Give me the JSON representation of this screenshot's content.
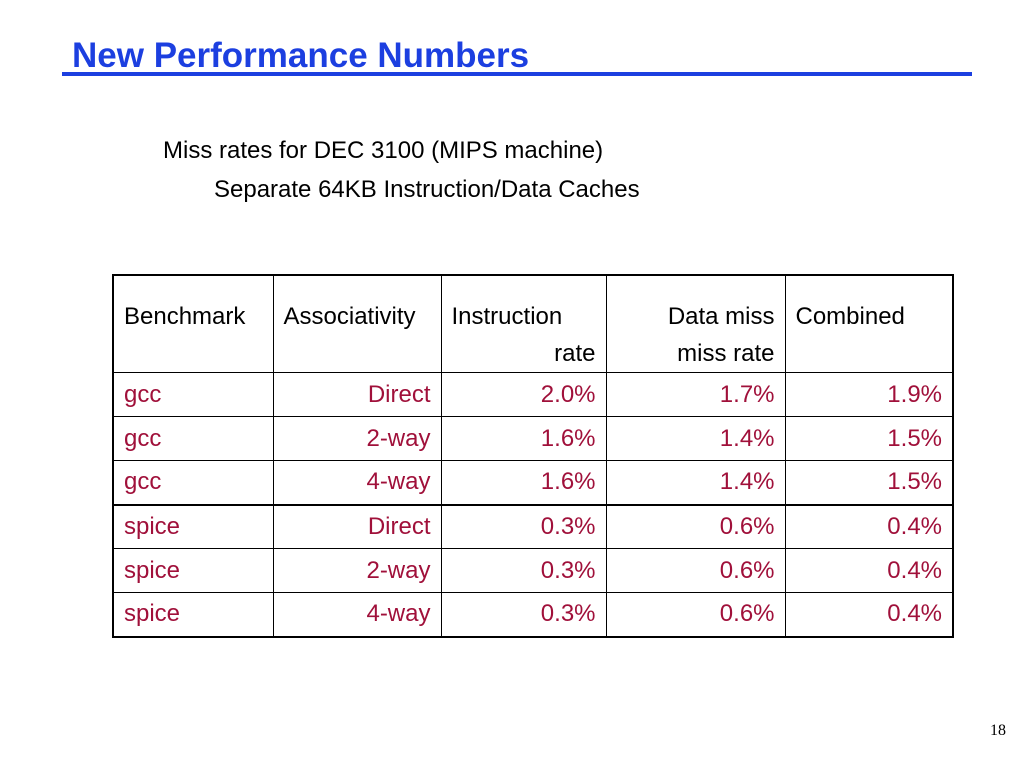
{
  "slide": {
    "title": "New Performance Numbers",
    "subtitle_line1": "Miss rates for DEC 3100 (MIPS machine)",
    "subtitle_line2": "Separate 64KB Instruction/Data Caches",
    "page_number": "18"
  },
  "table": {
    "headers": {
      "benchmark": "Benchmark",
      "associativity": "Associativity",
      "instruction_line1": "Instruction",
      "instruction_line2": "rate",
      "data_line1": "Data miss",
      "data_line2": "miss rate",
      "combined": "Combined"
    },
    "rows": [
      {
        "benchmark": "gcc",
        "associativity": "Direct",
        "instruction": "2.0%",
        "data": "1.7%",
        "combined": "1.9%"
      },
      {
        "benchmark": "gcc",
        "associativity": "2-way",
        "instruction": "1.6%",
        "data": "1.4%",
        "combined": "1.5%"
      },
      {
        "benchmark": "gcc",
        "associativity": "4-way",
        "instruction": "1.6%",
        "data": "1.4%",
        "combined": "1.5%"
      },
      {
        "benchmark": "spice",
        "associativity": "Direct",
        "instruction": "0.3%",
        "data": "0.6%",
        "combined": "0.4%"
      },
      {
        "benchmark": "spice",
        "associativity": "2-way",
        "instruction": "0.3%",
        "data": "0.6%",
        "combined": "0.4%"
      },
      {
        "benchmark": "spice",
        "associativity": "4-way",
        "instruction": "0.3%",
        "data": "0.6%",
        "combined": "0.4%"
      }
    ]
  },
  "colors": {
    "title": "#1c3fe0",
    "cell_text": "#a0103a"
  }
}
